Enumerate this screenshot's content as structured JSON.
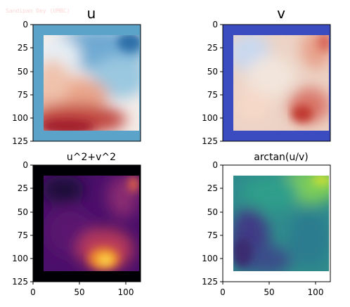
{
  "watermark": "Sandipan Dey (UMBC)",
  "colors": {
    "watermark": "#ffd6d6",
    "u_border": "#5ba3c9",
    "v_border": "#3b4cc0",
    "mag_border": "#000004",
    "ang_border": "#ffffff"
  },
  "chart_data": [
    {
      "type": "heatmap",
      "title": "u",
      "colormap": "RdBu",
      "xlim": [
        0,
        127
      ],
      "ylim": [
        127,
        0
      ],
      "y_ticks": [
        "0",
        "25",
        "50",
        "75",
        "100",
        "125"
      ],
      "x_ticks": [],
      "grid": false
    },
    {
      "type": "heatmap",
      "title": "v",
      "colormap": "coolwarm",
      "xlim": [
        0,
        127
      ],
      "ylim": [
        127,
        0
      ],
      "y_ticks": [
        "0",
        "25",
        "50",
        "75",
        "100",
        "125"
      ],
      "x_ticks": [],
      "grid": false
    },
    {
      "type": "heatmap",
      "title": "u^2+v^2",
      "colormap": "inferno",
      "xlim": [
        0,
        127
      ],
      "ylim": [
        127,
        0
      ],
      "y_ticks": [
        "0",
        "25",
        "50",
        "75",
        "100",
        "125"
      ],
      "x_ticks": [
        "0",
        "50",
        "100"
      ],
      "grid": false
    },
    {
      "type": "heatmap",
      "title": "arctan(u/v)",
      "colormap": "viridis",
      "xlim": [
        0,
        127
      ],
      "ylim": [
        127,
        0
      ],
      "y_ticks": [
        "0",
        "25",
        "50",
        "75",
        "100",
        "125"
      ],
      "x_ticks": [
        "0",
        "50",
        "100"
      ],
      "grid": false
    }
  ]
}
